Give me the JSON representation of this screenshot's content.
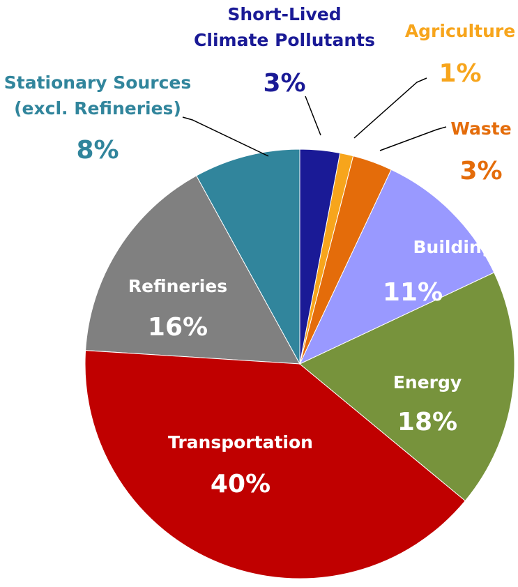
{
  "chart_data": {
    "type": "pie",
    "categories": [
      "Short-Lived\nClimate Pollutants",
      "Agriculture",
      "Waste",
      "Buildings",
      "Energy",
      "Transportation",
      "Refineries",
      "Stationary Sources\n(excl. Refineries)"
    ],
    "values": [
      3,
      1,
      3,
      11,
      18,
      40,
      16,
      8
    ],
    "value_labels": [
      "3%",
      "1%",
      "3%",
      "11%",
      "18%",
      "40%",
      "16%",
      "8%"
    ],
    "colors": [
      "#1a1a96",
      "#f7a51c",
      "#e46c0a",
      "#9999ff",
      "#77933c",
      "#c00000",
      "#808080",
      "#31859c"
    ]
  }
}
